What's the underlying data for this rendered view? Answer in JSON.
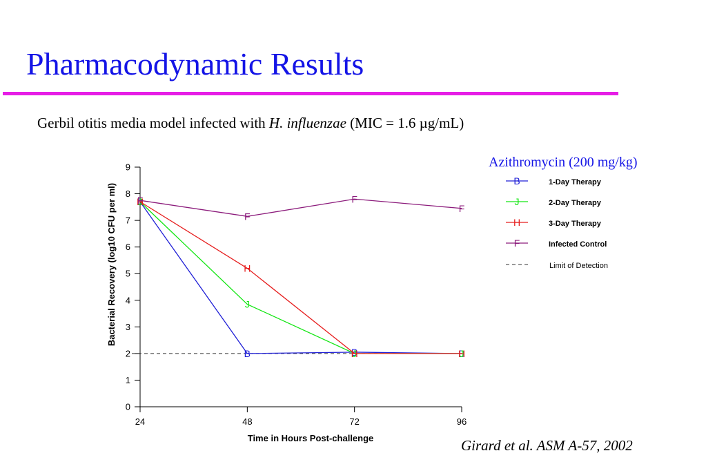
{
  "slide": {
    "title": "Pharmacodynamic Results",
    "subtitle_pre": "Gerbil otitis media model infected with ",
    "subtitle_italic": "H. influenzae",
    "subtitle_post": " (MIC = 1.6 µg/mL)",
    "drug_label": "Azithromycin (200 mg/kg)",
    "citation": "Girard et al. ASM A-57, 2002"
  },
  "colors": {
    "title": "#1414e6",
    "rule": "#e61ee6"
  },
  "chart_data": {
    "type": "line",
    "xlabel": "Time in Hours Post-challenge",
    "ylabel": "Bacterial Recovery (log10 CFU per ml)",
    "x": [
      24,
      48,
      72,
      96
    ],
    "xlim": [
      24,
      96
    ],
    "ylim": [
      0,
      9
    ],
    "yticks": [
      0,
      1,
      2,
      3,
      4,
      5,
      6,
      7,
      8,
      9
    ],
    "grid": false,
    "legend_position": "right",
    "series": [
      {
        "name": "1-Day Therapy",
        "marker": "B",
        "color": "#1f1fd6",
        "values": [
          7.7,
          2.0,
          2.05,
          2.0
        ]
      },
      {
        "name": "2-Day Therapy",
        "marker": "J",
        "color": "#14e614",
        "values": [
          7.7,
          3.85,
          2.0,
          2.0
        ]
      },
      {
        "name": "3-Day Therapy",
        "marker": "H",
        "color": "#e61e1e",
        "values": [
          7.7,
          5.2,
          2.0,
          2.0
        ]
      },
      {
        "name": "Infected Control",
        "marker": "F",
        "color": "#8c1c7c",
        "values": [
          7.75,
          7.15,
          7.8,
          7.45
        ]
      }
    ],
    "reference_line": {
      "name": "Limit of Detection",
      "value": 2.0,
      "color": "#333333",
      "style": "dashed"
    }
  }
}
